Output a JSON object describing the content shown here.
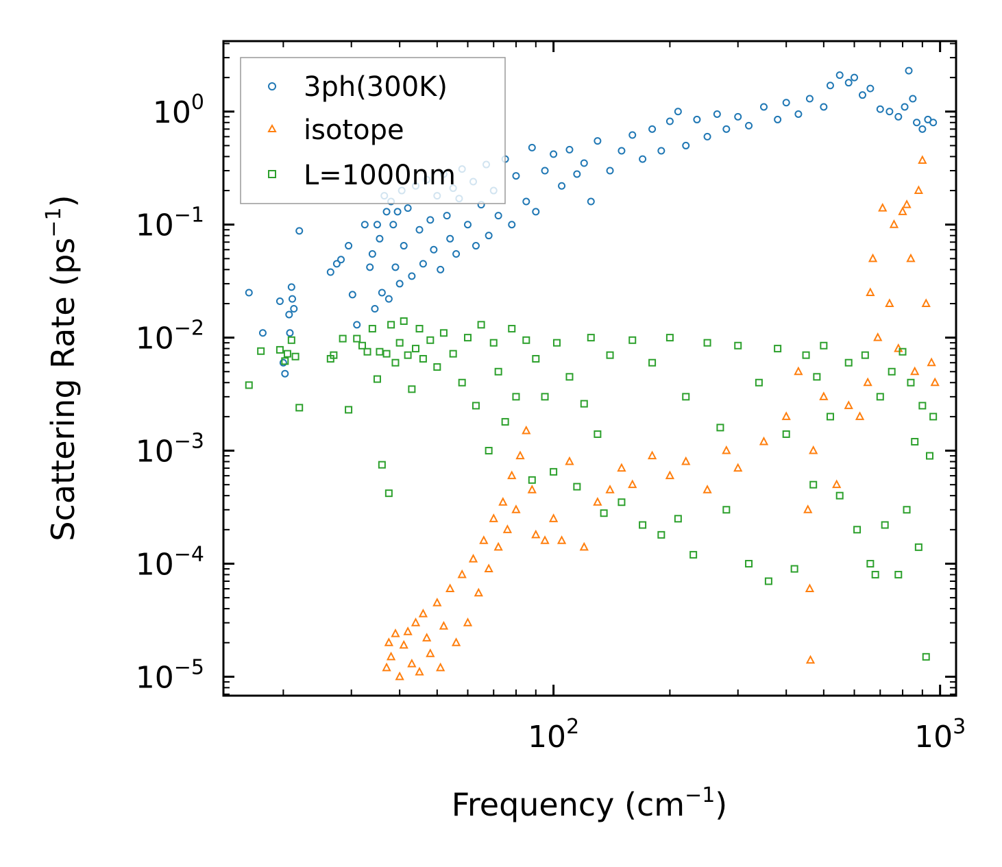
{
  "chart_data": {
    "type": "scatter",
    "title": "",
    "xlabel": {
      "base": "Frequency (cm",
      "sup": "−1",
      "tail": ")"
    },
    "ylabel": {
      "base": "Scattering Rate (ps",
      "sup": "−1",
      "tail": ")"
    },
    "xscale": "log",
    "yscale": "log",
    "xlim": [
      14,
      1100
    ],
    "ylim": [
      6.8e-06,
      4.2
    ],
    "x_ticks": [
      {
        "value": 100,
        "base": "10",
        "exp": "2"
      },
      {
        "value": 1000,
        "base": "10",
        "exp": "3"
      }
    ],
    "y_ticks": [
      {
        "value": 1,
        "base": "10",
        "exp": "0"
      },
      {
        "value": 0.1,
        "base": "10",
        "exp": "−1"
      },
      {
        "value": 0.01,
        "base": "10",
        "exp": "−2"
      },
      {
        "value": 0.001,
        "base": "10",
        "exp": "−3"
      },
      {
        "value": 0.0001,
        "base": "10",
        "exp": "−4"
      },
      {
        "value": 1e-05,
        "base": "10",
        "exp": "−5"
      }
    ],
    "legend_position": "top-left",
    "series": [
      {
        "name": "3ph(300K)",
        "marker": "circle",
        "color": "#1f77b4",
        "points": [
          [
            16.3,
            0.025
          ],
          [
            17.7,
            0.011
          ],
          [
            19.6,
            0.021
          ],
          [
            20.0,
            0.006
          ],
          [
            20.2,
            0.0048
          ],
          [
            20.7,
            0.016
          ],
          [
            20.8,
            0.011
          ],
          [
            21.0,
            0.028
          ],
          [
            21.1,
            0.022
          ],
          [
            21.3,
            0.018
          ],
          [
            22.0,
            0.088
          ],
          [
            26.5,
            0.038
          ],
          [
            27.5,
            0.045
          ],
          [
            28.2,
            0.049
          ],
          [
            29.5,
            0.065
          ],
          [
            30.2,
            0.024
          ],
          [
            31.0,
            0.013
          ],
          [
            32.5,
            0.1
          ],
          [
            33.5,
            0.042
          ],
          [
            34.0,
            0.055
          ],
          [
            34.5,
            0.018
          ],
          [
            35.0,
            0.1
          ],
          [
            35.5,
            0.075
          ],
          [
            36.0,
            0.025
          ],
          [
            36.5,
            0.18
          ],
          [
            37.0,
            0.13
          ],
          [
            37.5,
            0.022
          ],
          [
            38.0,
            0.16
          ],
          [
            38.5,
            0.1
          ],
          [
            39.0,
            0.042
          ],
          [
            39.5,
            0.13
          ],
          [
            40.0,
            0.03
          ],
          [
            40.5,
            0.2
          ],
          [
            41.0,
            0.065
          ],
          [
            42.0,
            0.14
          ],
          [
            43.0,
            0.035
          ],
          [
            44.0,
            0.22
          ],
          [
            45.0,
            0.09
          ],
          [
            46.0,
            0.045
          ],
          [
            47.0,
            0.25
          ],
          [
            48.0,
            0.11
          ],
          [
            49.0,
            0.06
          ],
          [
            50.0,
            0.18
          ],
          [
            51.0,
            0.04
          ],
          [
            52.0,
            0.28
          ],
          [
            53.0,
            0.12
          ],
          [
            54.0,
            0.075
          ],
          [
            55.0,
            0.21
          ],
          [
            56.0,
            0.055
          ],
          [
            57.0,
            0.17
          ],
          [
            58.0,
            0.31
          ],
          [
            60.0,
            0.1
          ],
          [
            62.0,
            0.24
          ],
          [
            63.0,
            0.065
          ],
          [
            65.0,
            0.15
          ],
          [
            67.0,
            0.34
          ],
          [
            68.0,
            0.08
          ],
          [
            70.0,
            0.2
          ],
          [
            72.0,
            0.12
          ],
          [
            75.0,
            0.38
          ],
          [
            78.0,
            0.1
          ],
          [
            80.0,
            0.27
          ],
          [
            85.0,
            0.16
          ],
          [
            88.0,
            0.48
          ],
          [
            90.0,
            0.13
          ],
          [
            95.0,
            0.3
          ],
          [
            100.0,
            0.42
          ],
          [
            105.0,
            0.22
          ],
          [
            110.0,
            0.46
          ],
          [
            115.0,
            0.28
          ],
          [
            120.0,
            0.35
          ],
          [
            125.0,
            0.16
          ],
          [
            130.0,
            0.55
          ],
          [
            140.0,
            0.3
          ],
          [
            150.0,
            0.45
          ],
          [
            160.0,
            0.62
          ],
          [
            170.0,
            0.38
          ],
          [
            180.0,
            0.7
          ],
          [
            190.0,
            0.45
          ],
          [
            200.0,
            0.82
          ],
          [
            210.0,
            1.0
          ],
          [
            220.0,
            0.5
          ],
          [
            235.0,
            0.85
          ],
          [
            250.0,
            0.6
          ],
          [
            265.0,
            0.95
          ],
          [
            280.0,
            0.7
          ],
          [
            300.0,
            0.9
          ],
          [
            320.0,
            0.75
          ],
          [
            350.0,
            1.1
          ],
          [
            380.0,
            0.85
          ],
          [
            400.0,
            1.2
          ],
          [
            430.0,
            0.95
          ],
          [
            460.0,
            1.3
          ],
          [
            500.0,
            1.1
          ],
          [
            520.0,
            1.7
          ],
          [
            550.0,
            2.1
          ],
          [
            580.0,
            1.8
          ],
          [
            600.0,
            2.0
          ],
          [
            630.0,
            1.4
          ],
          [
            660.0,
            1.6
          ],
          [
            700.0,
            1.05
          ],
          [
            740.0,
            1.0
          ],
          [
            780.0,
            0.9
          ],
          [
            810.0,
            1.1
          ],
          [
            830.0,
            2.3
          ],
          [
            850.0,
            1.3
          ],
          [
            870.0,
            0.8
          ],
          [
            900.0,
            0.7
          ],
          [
            930.0,
            0.85
          ],
          [
            960.0,
            0.8
          ]
        ]
      },
      {
        "name": "isotope",
        "marker": "triangle",
        "color": "#ff7f0e",
        "points": [
          [
            37.0,
            1.2e-05
          ],
          [
            37.5,
            2e-05
          ],
          [
            38.0,
            1.5e-05
          ],
          [
            39.0,
            2.4e-05
          ],
          [
            40.0,
            1e-05
          ],
          [
            41.0,
            1.9e-05
          ],
          [
            42.0,
            2.5e-05
          ],
          [
            43.0,
            1.3e-05
          ],
          [
            44.0,
            3e-05
          ],
          [
            45.0,
            1.1e-05
          ],
          [
            46.0,
            3.6e-05
          ],
          [
            47.0,
            2.2e-05
          ],
          [
            48.0,
            1.6e-05
          ],
          [
            50.0,
            4.5e-05
          ],
          [
            51.0,
            1.2e-05
          ],
          [
            52.0,
            2.8e-05
          ],
          [
            54.0,
            6e-05
          ],
          [
            56.0,
            2e-05
          ],
          [
            58.0,
            8e-05
          ],
          [
            60.0,
            3e-05
          ],
          [
            62.0,
            0.00011
          ],
          [
            64.0,
            5.5e-05
          ],
          [
            66.0,
            0.00016
          ],
          [
            68.0,
            9e-05
          ],
          [
            70.0,
            0.00025
          ],
          [
            72.0,
            0.00014
          ],
          [
            74.0,
            0.00035
          ],
          [
            76.0,
            0.0002
          ],
          [
            78.0,
            0.0006
          ],
          [
            80.0,
            0.0003
          ],
          [
            82.0,
            0.0009
          ],
          [
            85.0,
            0.0015
          ],
          [
            88.0,
            0.00045
          ],
          [
            90.0,
            0.00018
          ],
          [
            95.0,
            0.00016
          ],
          [
            100.0,
            0.00025
          ],
          [
            105.0,
            0.00016
          ],
          [
            110.0,
            0.0008
          ],
          [
            120.0,
            0.00014
          ],
          [
            130.0,
            0.00035
          ],
          [
            140.0,
            0.00045
          ],
          [
            150.0,
            0.0007
          ],
          [
            160.0,
            0.0005
          ],
          [
            180.0,
            0.0009
          ],
          [
            200.0,
            0.0006
          ],
          [
            220.0,
            0.0008
          ],
          [
            250.0,
            0.00045
          ],
          [
            280.0,
            0.001
          ],
          [
            300.0,
            0.0007
          ],
          [
            350.0,
            0.0012
          ],
          [
            400.0,
            0.002
          ],
          [
            430.0,
            0.005
          ],
          [
            455.0,
            0.0003
          ],
          [
            460.0,
            6e-05
          ],
          [
            462.0,
            1.4e-05
          ],
          [
            470.0,
            0.001
          ],
          [
            500.0,
            0.003
          ],
          [
            540.0,
            0.0005
          ],
          [
            580.0,
            0.0025
          ],
          [
            620.0,
            0.002
          ],
          [
            650.0,
            0.004
          ],
          [
            660.0,
            0.025
          ],
          [
            670.0,
            0.05
          ],
          [
            690.0,
            0.01
          ],
          [
            710.0,
            0.14
          ],
          [
            740.0,
            0.02
          ],
          [
            760.0,
            0.1
          ],
          [
            780.0,
            0.008
          ],
          [
            800.0,
            0.13
          ],
          [
            820.0,
            0.15
          ],
          [
            840.0,
            0.05
          ],
          [
            860.0,
            0.005
          ],
          [
            880.0,
            0.2
          ],
          [
            900.0,
            0.37
          ],
          [
            920.0,
            0.02
          ],
          [
            950.0,
            0.006
          ],
          [
            970.0,
            0.004
          ]
        ]
      },
      {
        "name": "L=1000nm",
        "marker": "square",
        "color": "#2ca02c",
        "points": [
          [
            16.3,
            0.0038
          ],
          [
            17.5,
            0.0076
          ],
          [
            19.6,
            0.0078
          ],
          [
            20.2,
            0.0062
          ],
          [
            20.5,
            0.0072
          ],
          [
            21.0,
            0.0095
          ],
          [
            21.5,
            0.0068
          ],
          [
            22.0,
            0.0024
          ],
          [
            26.5,
            0.0065
          ],
          [
            27.0,
            0.007
          ],
          [
            28.5,
            0.0098
          ],
          [
            29.5,
            0.0023
          ],
          [
            31.0,
            0.0098
          ],
          [
            32.0,
            0.0085
          ],
          [
            33.0,
            0.0075
          ],
          [
            34.0,
            0.012
          ],
          [
            35.0,
            0.0043
          ],
          [
            35.5,
            0.0075
          ],
          [
            36.0,
            0.00075
          ],
          [
            37.0,
            0.0072
          ],
          [
            37.5,
            0.00042
          ],
          [
            38.0,
            0.013
          ],
          [
            39.0,
            0.006
          ],
          [
            40.0,
            0.009
          ],
          [
            41.0,
            0.014
          ],
          [
            42.0,
            0.007
          ],
          [
            43.0,
            0.0035
          ],
          [
            44.0,
            0.008
          ],
          [
            45.0,
            0.012
          ],
          [
            46.0,
            0.0065
          ],
          [
            48.0,
            0.0095
          ],
          [
            50.0,
            0.0055
          ],
          [
            52.0,
            0.011
          ],
          [
            55.0,
            0.0072
          ],
          [
            58.0,
            0.004
          ],
          [
            60.0,
            0.01
          ],
          [
            63.0,
            0.0025
          ],
          [
            65.0,
            0.013
          ],
          [
            68.0,
            0.001
          ],
          [
            70.0,
            0.009
          ],
          [
            72.0,
            0.005
          ],
          [
            75.0,
            0.0018
          ],
          [
            78.0,
            0.012
          ],
          [
            80.0,
            0.003
          ],
          [
            85.0,
            0.0095
          ],
          [
            88.0,
            0.00055
          ],
          [
            90.0,
            0.0065
          ],
          [
            95.0,
            0.003
          ],
          [
            100.0,
            0.00065
          ],
          [
            102.0,
            0.009
          ],
          [
            110.0,
            0.0045
          ],
          [
            115.0,
            0.00048
          ],
          [
            120.0,
            0.0026
          ],
          [
            125.0,
            0.01
          ],
          [
            130.0,
            0.0014
          ],
          [
            135.0,
            0.00028
          ],
          [
            140.0,
            0.007
          ],
          [
            150.0,
            0.00035
          ],
          [
            160.0,
            0.0095
          ],
          [
            170.0,
            0.00022
          ],
          [
            180.0,
            0.006
          ],
          [
            190.0,
            0.00018
          ],
          [
            200.0,
            0.01
          ],
          [
            210.0,
            0.00025
          ],
          [
            220.0,
            0.003
          ],
          [
            230.0,
            0.00012
          ],
          [
            250.0,
            0.009
          ],
          [
            270.0,
            0.0016
          ],
          [
            280.0,
            0.0003
          ],
          [
            300.0,
            0.0085
          ],
          [
            320.0,
            0.0001
          ],
          [
            340.0,
            0.004
          ],
          [
            360.0,
            7e-05
          ],
          [
            380.0,
            0.008
          ],
          [
            400.0,
            0.0014
          ],
          [
            420.0,
            9e-05
          ],
          [
            450.0,
            0.007
          ],
          [
            470.0,
            0.0005
          ],
          [
            480.0,
            0.0045
          ],
          [
            500.0,
            0.0085
          ],
          [
            520.0,
            0.002
          ],
          [
            550.0,
            0.0004
          ],
          [
            580.0,
            0.006
          ],
          [
            610.0,
            0.0002
          ],
          [
            640.0,
            0.007
          ],
          [
            660.0,
            0.0001
          ],
          [
            680.0,
            8e-05
          ],
          [
            700.0,
            0.003
          ],
          [
            720.0,
            0.00022
          ],
          [
            750.0,
            0.005
          ],
          [
            780.0,
            8e-05
          ],
          [
            800.0,
            0.0075
          ],
          [
            820.0,
            0.0003
          ],
          [
            840.0,
            0.004
          ],
          [
            860.0,
            0.0012
          ],
          [
            880.0,
            0.00014
          ],
          [
            900.0,
            0.0025
          ],
          [
            920.0,
            1.5e-05
          ],
          [
            940.0,
            0.0009
          ],
          [
            960.0,
            0.002
          ]
        ]
      }
    ]
  }
}
